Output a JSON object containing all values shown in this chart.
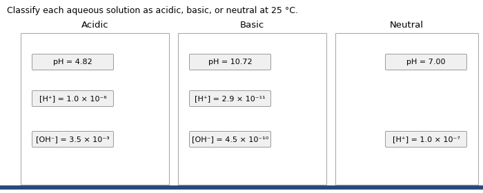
{
  "title": "Classify each aqueous solution as acidic, basic, or neutral at 25 °C.",
  "columns": [
    "Acidic",
    "Basic",
    "Neutral"
  ],
  "boxes": {
    "Acidic": [
      {
        "label": "pH = 4.82",
        "row": 0
      },
      {
        "label": "[H⁺] = 1.0 × 10⁻⁶",
        "row": 1
      },
      {
        "label": "[OH⁻] = 3.5 × 10⁻³",
        "row": 2
      }
    ],
    "Basic": [
      {
        "label": "pH = 10.72",
        "row": 0
      },
      {
        "label": "[H⁺] = 2.9 × 10⁻¹¹",
        "row": 1
      },
      {
        "label": "[OH⁻] = 4.5 × 10⁻¹⁰",
        "row": 2
      }
    ],
    "Neutral": [
      {
        "label": "pH = 7.00",
        "row": 0
      },
      {
        "label": "[H⁺] = 1.0 × 10⁻⁷",
        "row": 2
      }
    ]
  },
  "bg_color": "#ffffff",
  "box_facecolor": "#f0f0f0",
  "box_edgecolor": "#999999",
  "panel_edgecolor": "#aaaaaa",
  "panel_facecolor": "#ffffff",
  "title_fontsize": 9.0,
  "col_header_fontsize": 9.5,
  "item_fontsize": 8.0,
  "bottom_bar_color": "#2a4a7a"
}
